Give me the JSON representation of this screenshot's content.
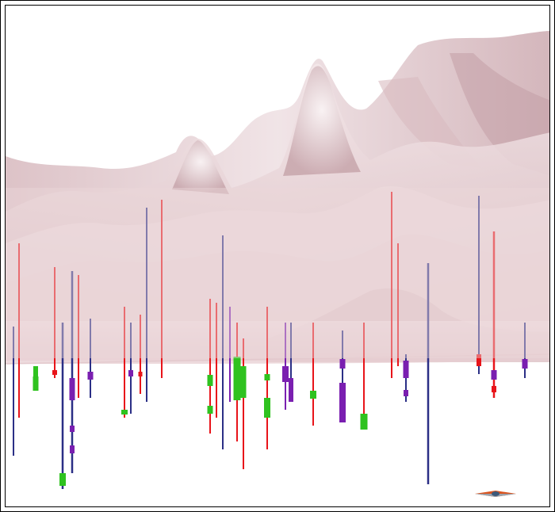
{
  "scene": {
    "kind": "3d-terrain-with-drillholes",
    "surface_color": "#e9cfd3",
    "surface_shadow": "#b79aa0",
    "surface_highlight": "#f7eef0",
    "drillhole_colors": {
      "red": "#e8141a",
      "navy": "#2b2f86",
      "purple": "#7a1fb0",
      "green": "#2fc21f"
    }
  },
  "compass": {
    "icon": "north-arrow-icon"
  }
}
